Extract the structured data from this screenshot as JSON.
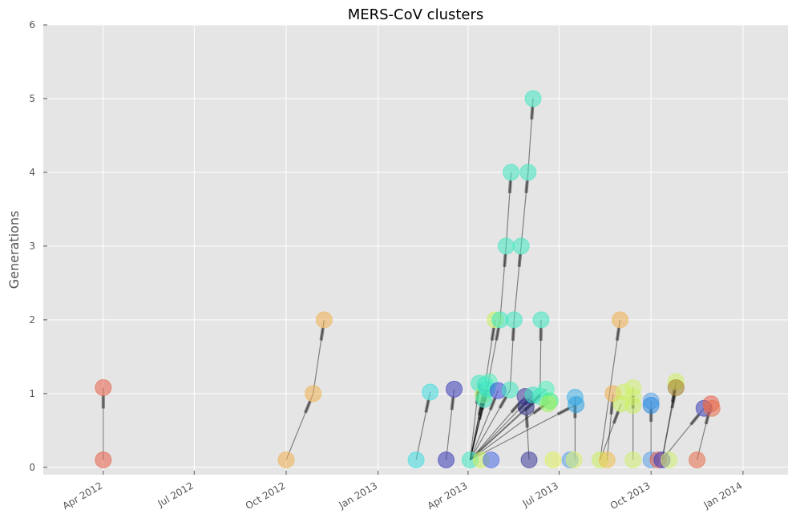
{
  "chart_data": {
    "type": "scatter",
    "title": "MERS-CoV clusters",
    "xlabel": "",
    "ylabel": "Generations",
    "xlim": [
      "2012-02-01",
      "2014-02-15"
    ],
    "ylim": [
      -0.1,
      6
    ],
    "grid": true,
    "legend": "none",
    "x_ticks": [
      {
        "date": "2012-04-01",
        "label": "Apr 2012"
      },
      {
        "date": "2012-07-01",
        "label": "Jul 2012"
      },
      {
        "date": "2012-10-01",
        "label": "Oct 2012"
      },
      {
        "date": "2013-01-01",
        "label": "Jan 2013"
      },
      {
        "date": "2013-04-01",
        "label": "Apr 2013"
      },
      {
        "date": "2013-07-01",
        "label": "Jul 2013"
      },
      {
        "date": "2013-10-01",
        "label": "Oct 2013"
      },
      {
        "date": "2014-01-01",
        "label": "Jan 2014"
      }
    ],
    "y_ticks": [
      0,
      1,
      2,
      3,
      4,
      5,
      6
    ],
    "points": [
      {
        "date": "2012-04-01",
        "generation": 0.1,
        "color": "#e8604a"
      },
      {
        "date": "2012-04-01",
        "generation": 1.08,
        "color": "#e8604a"
      },
      {
        "date": "2012-10-01",
        "generation": 0.1,
        "color": "#f0b050"
      },
      {
        "date": "2012-10-28",
        "generation": 1.0,
        "color": "#f0b050"
      },
      {
        "date": "2012-11-08",
        "generation": 2.0,
        "color": "#f0b050"
      },
      {
        "date": "2013-02-08",
        "generation": 0.1,
        "color": "#40dde0"
      },
      {
        "date": "2013-02-22",
        "generation": 1.02,
        "color": "#40dde0"
      },
      {
        "date": "2013-03-10",
        "generation": 0.1,
        "color": "#3a3ab8"
      },
      {
        "date": "2013-03-18",
        "generation": 1.06,
        "color": "#3a3ab8"
      },
      {
        "date": "2013-04-03",
        "generation": 0.1,
        "color": "#40e8c0"
      },
      {
        "date": "2013-04-14",
        "generation": 0.1,
        "color": "#c8f060"
      },
      {
        "date": "2013-04-24",
        "generation": 0.1,
        "color": "#4a6ae8"
      },
      {
        "date": "2013-06-01",
        "generation": 0.1,
        "color": "#3a3a9a"
      },
      {
        "date": "2013-06-25",
        "generation": 0.1,
        "color": "#e0f060"
      },
      {
        "date": "2013-07-12",
        "generation": 0.1,
        "color": "#5aa0e8"
      },
      {
        "date": "2013-07-16",
        "generation": 0.1,
        "color": "#d8f070"
      },
      {
        "date": "2013-08-11",
        "generation": 0.1,
        "color": "#c8f060"
      },
      {
        "date": "2013-08-18",
        "generation": 0.1,
        "color": "#f0c050"
      },
      {
        "date": "2013-09-13",
        "generation": 0.1,
        "color": "#d0f070"
      },
      {
        "date": "2013-10-01",
        "generation": 0.1,
        "color": "#5aa0e8"
      },
      {
        "date": "2013-10-08",
        "generation": 0.1,
        "color": "#e8604a"
      },
      {
        "date": "2013-10-12",
        "generation": 0.1,
        "color": "#3a3ab8"
      },
      {
        "date": "2013-10-19",
        "generation": 0.1,
        "color": "#d0f070"
      },
      {
        "date": "2013-11-16",
        "generation": 0.1,
        "color": "#e8704a"
      },
      {
        "date": "2013-04-12",
        "generation": 1.14,
        "color": "#40e8c0"
      },
      {
        "date": "2013-04-16",
        "generation": 0.98,
        "color": "#a0f060"
      },
      {
        "date": "2013-04-18",
        "generation": 1.12,
        "color": "#40e8c0"
      },
      {
        "date": "2013-04-20",
        "generation": 1.06,
        "color": "#30d8d0"
      },
      {
        "date": "2013-04-22",
        "generation": 1.16,
        "color": "#50f0c0"
      },
      {
        "date": "2013-04-17",
        "generation": 0.92,
        "color": "#40e8c0"
      },
      {
        "date": "2013-05-01",
        "generation": 1.04,
        "color": "#3a4ad8"
      },
      {
        "date": "2013-05-13",
        "generation": 1.05,
        "color": "#40e8c0"
      },
      {
        "date": "2013-05-28",
        "generation": 0.96,
        "color": "#3a3a9a"
      },
      {
        "date": "2013-05-29",
        "generation": 0.82,
        "color": "#2a2a80"
      },
      {
        "date": "2013-06-05",
        "generation": 0.98,
        "color": "#40e0c0"
      },
      {
        "date": "2013-06-12",
        "generation": 0.96,
        "color": "#40e8c0"
      },
      {
        "date": "2013-06-18",
        "generation": 1.06,
        "color": "#50f0c0"
      },
      {
        "date": "2013-06-22",
        "generation": 0.9,
        "color": "#40f080"
      },
      {
        "date": "2013-06-20",
        "generation": 0.86,
        "color": "#a0f060"
      },
      {
        "date": "2013-07-17",
        "generation": 0.95,
        "color": "#40b0e8"
      },
      {
        "date": "2013-07-18",
        "generation": 0.85,
        "color": "#2aa0e0"
      },
      {
        "date": "2013-04-28",
        "generation": 2.0,
        "color": "#c8f060"
      },
      {
        "date": "2013-05-03",
        "generation": 2.0,
        "color": "#40e8c0"
      },
      {
        "date": "2013-05-17",
        "generation": 2.0,
        "color": "#40e8c0"
      },
      {
        "date": "2013-06-13",
        "generation": 2.0,
        "color": "#40e8c0"
      },
      {
        "date": "2013-05-09",
        "generation": 3.0,
        "color": "#40e8c0"
      },
      {
        "date": "2013-05-24",
        "generation": 3.0,
        "color": "#40e8c0"
      },
      {
        "date": "2013-05-14",
        "generation": 4.0,
        "color": "#40e8c0"
      },
      {
        "date": "2013-05-31",
        "generation": 4.0,
        "color": "#40e8c0"
      },
      {
        "date": "2013-06-05",
        "generation": 5.0,
        "color": "#40e8c0"
      },
      {
        "date": "2013-08-24",
        "generation": 1.0,
        "color": "#f0b050"
      },
      {
        "date": "2013-08-31",
        "generation": 2.0,
        "color": "#f0b050"
      },
      {
        "date": "2013-09-04",
        "generation": 1.02,
        "color": "#d0f070"
      },
      {
        "date": "2013-09-01",
        "generation": 0.86,
        "color": "#c8f060"
      },
      {
        "date": "2013-09-13",
        "generation": 1.08,
        "color": "#d0f070"
      },
      {
        "date": "2013-09-13",
        "generation": 0.96,
        "color": "#d0f070"
      },
      {
        "date": "2013-09-13",
        "generation": 0.84,
        "color": "#c8f060"
      },
      {
        "date": "2013-10-01",
        "generation": 0.9,
        "color": "#5aa0e8"
      },
      {
        "date": "2013-10-01",
        "generation": 0.84,
        "color": "#2a8ae0"
      },
      {
        "date": "2013-10-26",
        "generation": 1.16,
        "color": "#d0f060"
      },
      {
        "date": "2013-10-26",
        "generation": 1.08,
        "color": "#a08020"
      },
      {
        "date": "2013-11-23",
        "generation": 0.8,
        "color": "#3a3ab8"
      },
      {
        "date": "2013-11-30",
        "generation": 0.86,
        "color": "#e8604a"
      },
      {
        "date": "2013-12-01",
        "generation": 0.8,
        "color": "#e8704a"
      }
    ],
    "links": [
      {
        "from": [
          "2012-04-01",
          0.1
        ],
        "to": [
          "2012-04-01",
          1.08
        ]
      },
      {
        "from": [
          "2012-10-01",
          0.1
        ],
        "to": [
          "2012-10-28",
          1.0
        ]
      },
      {
        "from": [
          "2012-10-28",
          1.0
        ],
        "to": [
          "2012-11-08",
          2.0
        ]
      },
      {
        "from": [
          "2013-02-08",
          0.1
        ],
        "to": [
          "2013-02-22",
          1.02
        ]
      },
      {
        "from": [
          "2013-03-10",
          0.1
        ],
        "to": [
          "2013-03-18",
          1.06
        ]
      },
      {
        "from": [
          "2013-04-03",
          0.1
        ],
        "to": [
          "2013-04-12",
          1.14
        ]
      },
      {
        "from": [
          "2013-04-03",
          0.1
        ],
        "to": [
          "2013-04-16",
          0.98
        ]
      },
      {
        "from": [
          "2013-04-03",
          0.1
        ],
        "to": [
          "2013-04-18",
          1.12
        ]
      },
      {
        "from": [
          "2013-04-03",
          0.1
        ],
        "to": [
          "2013-04-20",
          1.06
        ]
      },
      {
        "from": [
          "2013-04-03",
          0.1
        ],
        "to": [
          "2013-04-22",
          1.16
        ]
      },
      {
        "from": [
          "2013-04-03",
          0.1
        ],
        "to": [
          "2013-04-17",
          0.92
        ]
      },
      {
        "from": [
          "2013-04-03",
          0.1
        ],
        "to": [
          "2013-05-01",
          1.04
        ]
      },
      {
        "from": [
          "2013-04-03",
          0.1
        ],
        "to": [
          "2013-05-13",
          1.05
        ]
      },
      {
        "from": [
          "2013-04-03",
          0.1
        ],
        "to": [
          "2013-05-28",
          0.96
        ]
      },
      {
        "from": [
          "2013-04-03",
          0.1
        ],
        "to": [
          "2013-06-05",
          0.98
        ]
      },
      {
        "from": [
          "2013-04-03",
          0.1
        ],
        "to": [
          "2013-06-12",
          0.96
        ]
      },
      {
        "from": [
          "2013-04-03",
          0.1
        ],
        "to": [
          "2013-06-18",
          1.06
        ]
      },
      {
        "from": [
          "2013-04-03",
          0.1
        ],
        "to": [
          "2013-06-22",
          0.9
        ]
      },
      {
        "from": [
          "2013-04-03",
          0.1
        ],
        "to": [
          "2013-07-18",
          0.85
        ]
      },
      {
        "from": [
          "2013-04-18",
          1.12
        ],
        "to": [
          "2013-04-28",
          2.0
        ]
      },
      {
        "from": [
          "2013-04-20",
          1.06
        ],
        "to": [
          "2013-05-03",
          2.0
        ]
      },
      {
        "from": [
          "2013-05-13",
          1.05
        ],
        "to": [
          "2013-05-17",
          2.0
        ]
      },
      {
        "from": [
          "2013-06-12",
          0.96
        ],
        "to": [
          "2013-06-13",
          2.0
        ]
      },
      {
        "from": [
          "2013-05-03",
          2.0
        ],
        "to": [
          "2013-05-09",
          3.0
        ]
      },
      {
        "from": [
          "2013-05-17",
          2.0
        ],
        "to": [
          "2013-05-24",
          3.0
        ]
      },
      {
        "from": [
          "2013-05-09",
          3.0
        ],
        "to": [
          "2013-05-14",
          4.0
        ]
      },
      {
        "from": [
          "2013-05-24",
          3.0
        ],
        "to": [
          "2013-05-31",
          4.0
        ]
      },
      {
        "from": [
          "2013-05-31",
          4.0
        ],
        "to": [
          "2013-06-05",
          5.0
        ]
      },
      {
        "from": [
          "2013-06-01",
          0.1
        ],
        "to": [
          "2013-05-29",
          0.82
        ]
      },
      {
        "from": [
          "2013-07-17",
          0.1
        ],
        "to": [
          "2013-07-17",
          0.95
        ]
      },
      {
        "from": [
          "2013-08-11",
          0.1
        ],
        "to": [
          "2013-08-31",
          2.0
        ]
      },
      {
        "from": [
          "2013-08-11",
          0.1
        ],
        "to": [
          "2013-09-01",
          0.86
        ]
      },
      {
        "from": [
          "2013-08-18",
          0.1
        ],
        "to": [
          "2013-08-24",
          1.0
        ]
      },
      {
        "from": [
          "2013-09-13",
          0.1
        ],
        "to": [
          "2013-09-13",
          1.08
        ]
      },
      {
        "from": [
          "2013-10-01",
          0.1
        ],
        "to": [
          "2013-10-01",
          0.9
        ]
      },
      {
        "from": [
          "2013-10-12",
          0.1
        ],
        "to": [
          "2013-10-26",
          1.16
        ]
      },
      {
        "from": [
          "2013-10-12",
          0.1
        ],
        "to": [
          "2013-10-26",
          1.08
        ]
      },
      {
        "from": [
          "2013-11-16",
          0.1
        ],
        "to": [
          "2013-11-30",
          0.86
        ]
      },
      {
        "from": [
          "2013-10-12",
          0.1
        ],
        "to": [
          "2013-11-23",
          0.8
        ]
      }
    ]
  }
}
